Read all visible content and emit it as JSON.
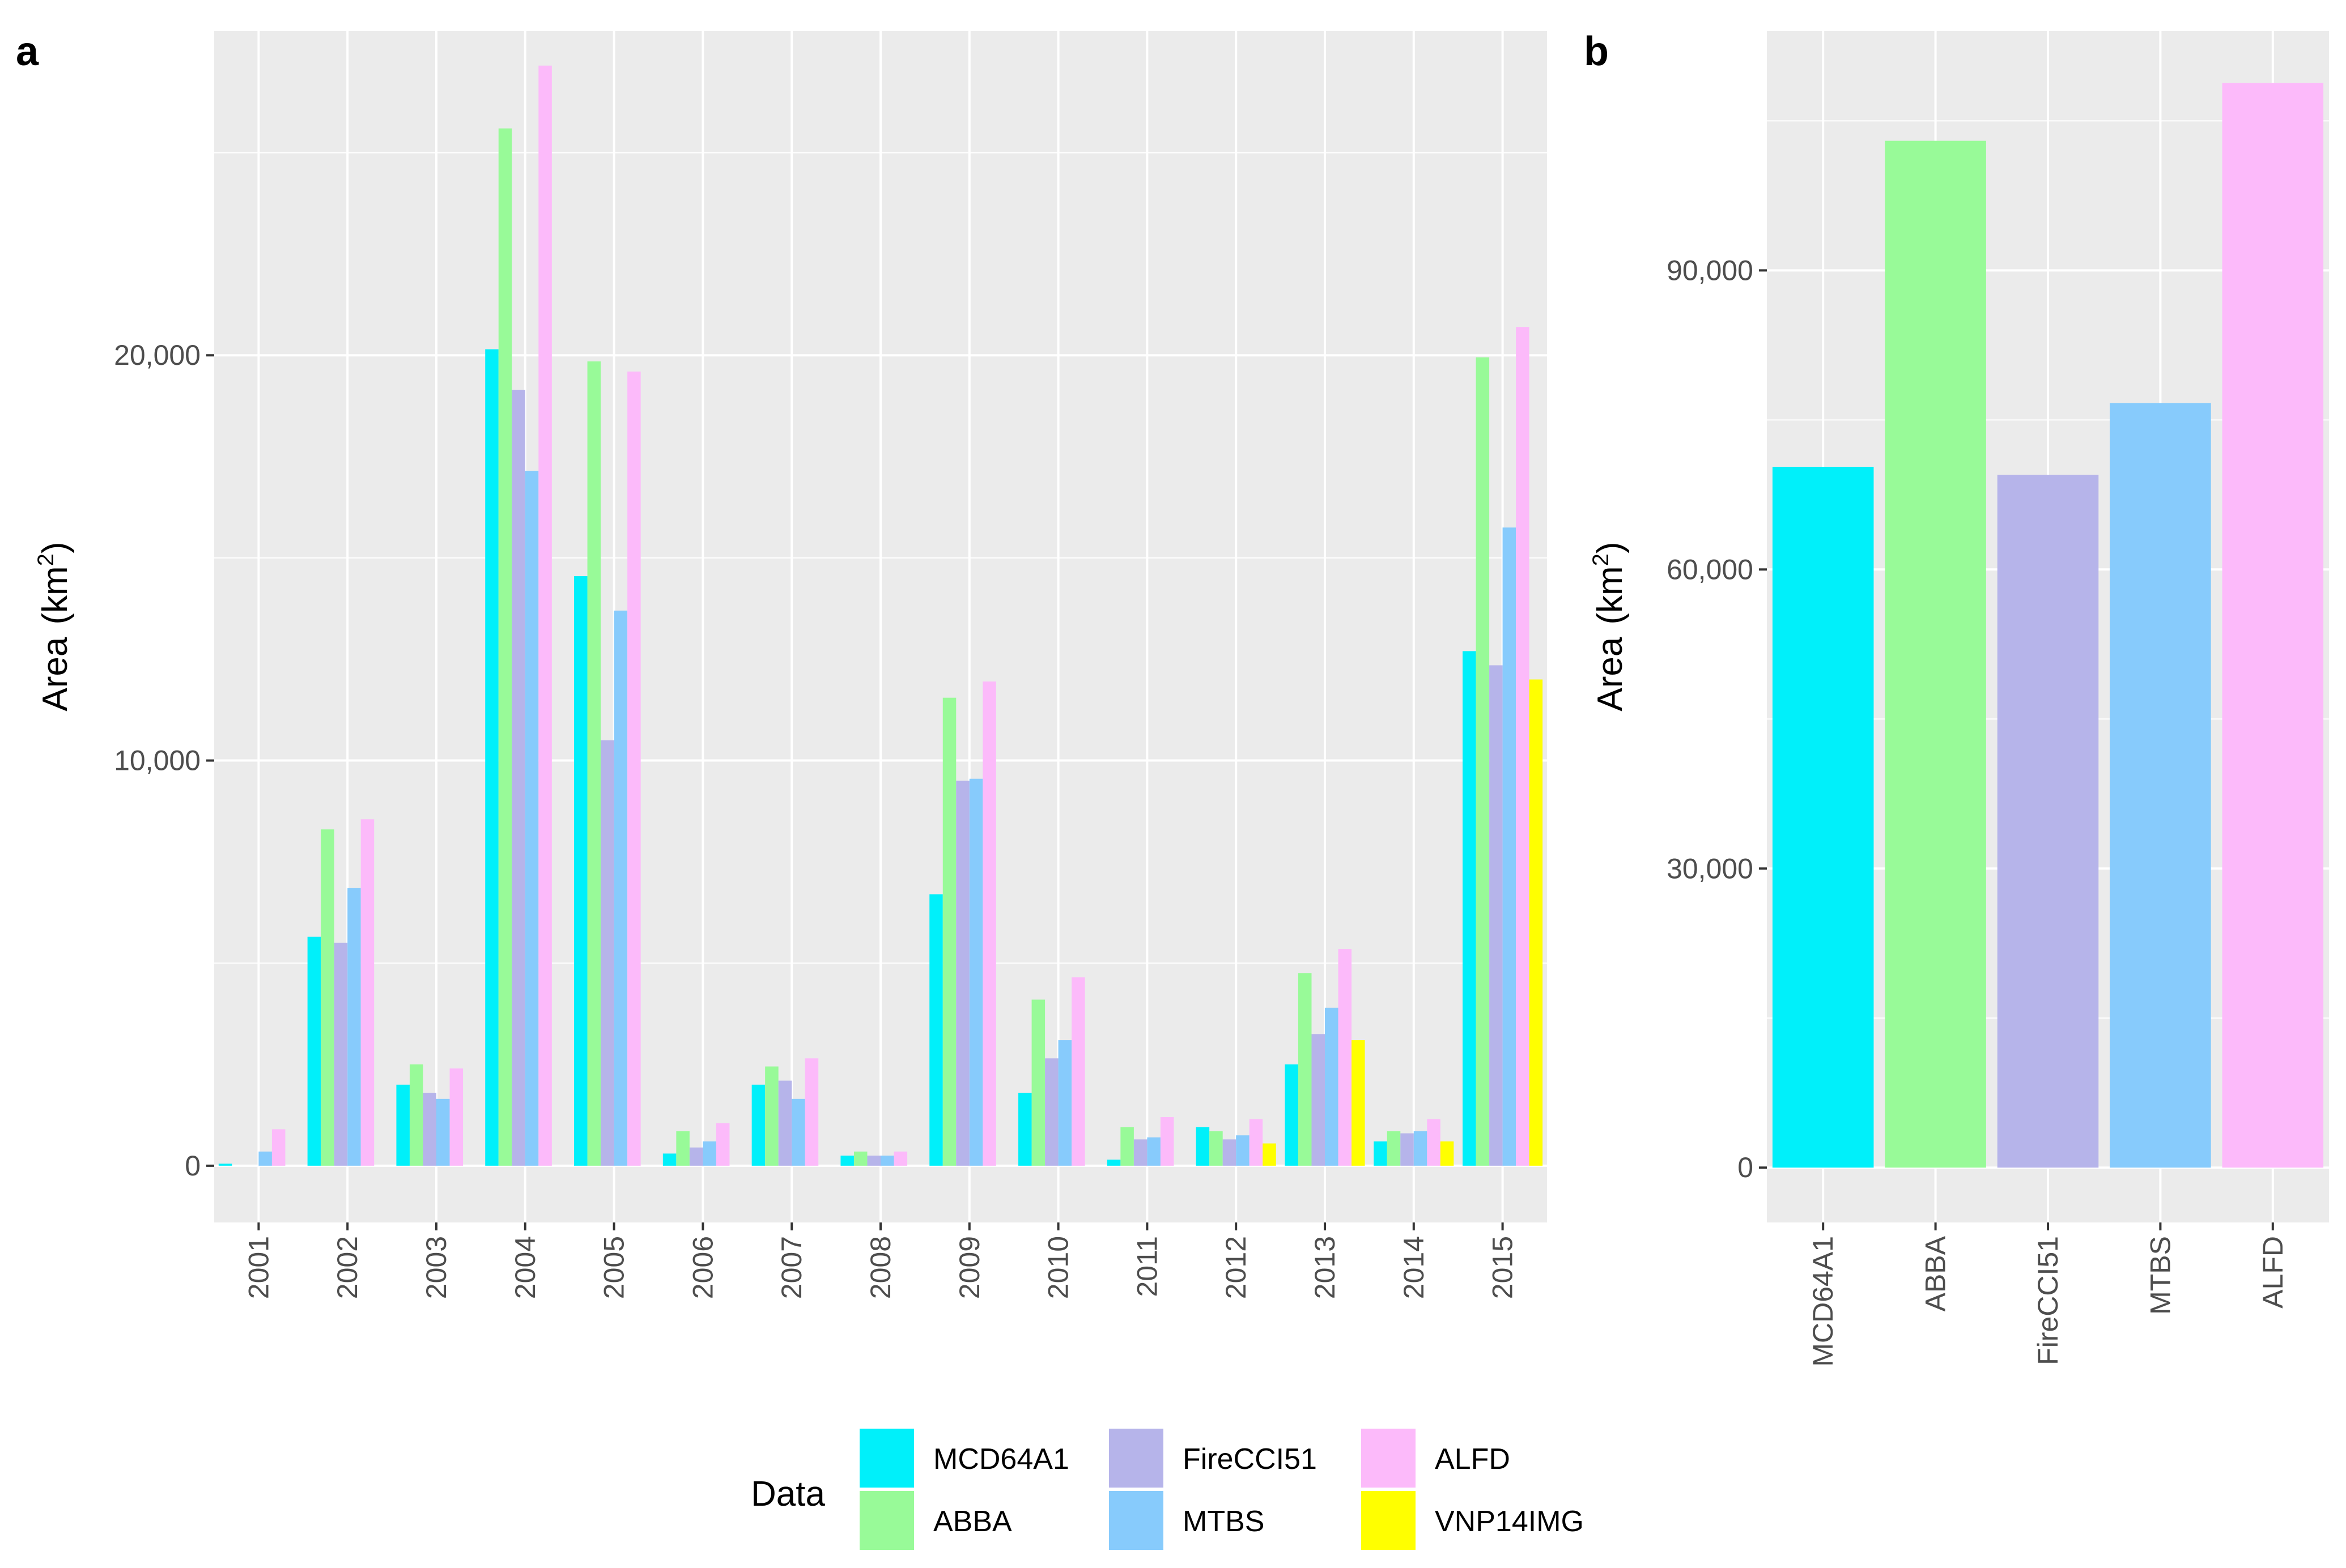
{
  "figure": {
    "panel_a_label": "a",
    "panel_b_label": "b",
    "legend_title": "Data"
  },
  "colors": {
    "MCD64A1": "#00F0FA",
    "ABBA": "#98FA98",
    "FireCCI51": "#B6B4EA",
    "MTBS": "#87CBFC",
    "ALFD": "#FCBAFA",
    "VNP14IMG": "#FFFF00",
    "panel_bg": "#EBEBEB",
    "grid": "#FFFFFF"
  },
  "chart_data": [
    {
      "panel": "a",
      "type": "bar",
      "title": "",
      "xlabel": "",
      "ylabel": "Area",
      "ylabel_unit": "(km",
      "ylabel_sup": "2",
      "ylabel_close": ")",
      "ylim": [
        -1400,
        28000
      ],
      "yticks": [
        0,
        10000,
        20000
      ],
      "ytick_labels": [
        "0",
        "10,000",
        "20,000"
      ],
      "categories": [
        "2001",
        "2002",
        "2003",
        "2004",
        "2005",
        "2006",
        "2007",
        "2008",
        "2009",
        "2010",
        "2011",
        "2012",
        "2013",
        "2014",
        "2015"
      ],
      "series": [
        {
          "name": "MCD64A1",
          "values": [
            50,
            5650,
            2000,
            20150,
            14550,
            300,
            2000,
            250,
            6700,
            1800,
            150,
            950,
            2500,
            600,
            12700
          ]
        },
        {
          "name": "ABBA",
          "values": [
            null,
            8300,
            2500,
            25600,
            19850,
            850,
            2450,
            350,
            11550,
            4100,
            950,
            850,
            4750,
            850,
            19950
          ]
        },
        {
          "name": "FireCCI51",
          "values": [
            null,
            5500,
            1800,
            19150,
            10500,
            450,
            2100,
            250,
            9500,
            2650,
            650,
            650,
            3250,
            800,
            12350
          ]
        },
        {
          "name": "MTBS",
          "values": [
            350,
            6850,
            1650,
            17150,
            13700,
            600,
            1650,
            250,
            9550,
            3100,
            700,
            750,
            3900,
            850,
            15750
          ]
        },
        {
          "name": "ALFD",
          "values": [
            900,
            8550,
            2400,
            27150,
            19600,
            1050,
            2650,
            350,
            11950,
            4650,
            1200,
            1150,
            5350,
            1150,
            20700
          ]
        },
        {
          "name": "VNP14IMG",
          "values": [
            null,
            null,
            null,
            null,
            null,
            null,
            null,
            null,
            null,
            null,
            null,
            550,
            3100,
            600,
            12000
          ]
        }
      ]
    },
    {
      "panel": "b",
      "type": "bar",
      "title": "",
      "xlabel": "",
      "ylabel": "Area",
      "ylabel_unit": "(km",
      "ylabel_sup": "2",
      "ylabel_close": ")",
      "ylim": [
        -5500,
        114000
      ],
      "yticks": [
        0,
        30000,
        60000,
        90000
      ],
      "ytick_labels": [
        "0",
        "30,000",
        "60,000",
        "90,000"
      ],
      "categories": [
        "MCD64A1",
        "ABBA",
        "FireCCI51",
        "MTBS",
        "ALFD"
      ],
      "values": [
        70300,
        103000,
        69500,
        76700,
        108800
      ]
    }
  ],
  "legend": {
    "items": [
      {
        "label": "MCD64A1"
      },
      {
        "label": "ABBA"
      },
      {
        "label": "FireCCI51"
      },
      {
        "label": "MTBS"
      },
      {
        "label": "ALFD"
      },
      {
        "label": "VNP14IMG"
      }
    ]
  }
}
